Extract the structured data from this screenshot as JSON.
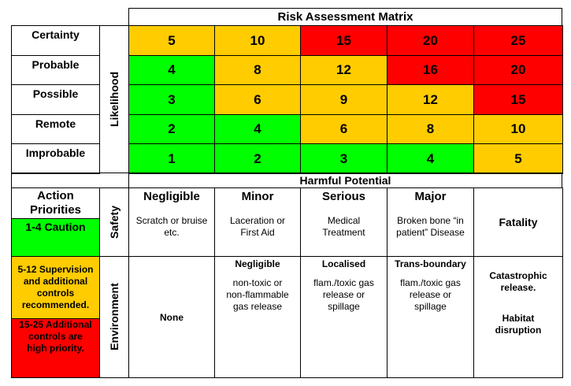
{
  "matrix_title": "Risk Assessment Matrix",
  "likelihood_label": "Likelihood",
  "likelihood_rows": [
    {
      "label": "Certainty",
      "values": [
        5,
        10,
        15,
        20,
        25
      ]
    },
    {
      "label": "Probable",
      "values": [
        4,
        8,
        12,
        16,
        20
      ]
    },
    {
      "label": "Possible",
      "values": [
        3,
        6,
        9,
        12,
        15
      ]
    },
    {
      "label": "Remote",
      "values": [
        2,
        4,
        6,
        8,
        10
      ]
    },
    {
      "label": "Improbable",
      "values": [
        1,
        2,
        3,
        4,
        5
      ]
    }
  ],
  "harmful_potential_label": "Harmful Potential",
  "colors": {
    "green": "#00ff00",
    "amber": "#ffcc00",
    "red": "#ff0000"
  },
  "action_priorities": {
    "title": "Action Priorities",
    "caution": "1-4 Caution",
    "supervision": "5-12 Supervision and additional controls recommended.",
    "high_priority": "15-25 Additional controls are high priority."
  },
  "safety_label": "Safety",
  "environment_label": "Environment",
  "safety": [
    {
      "header": "Negligible",
      "desc": "Scratch or bruise etc."
    },
    {
      "header": "Minor",
      "desc": "Laceration or First Aid"
    },
    {
      "header": "Serious",
      "desc": "Medical Treatment"
    },
    {
      "header": "Major",
      "desc": "Broken bone “in patient” Disease"
    },
    {
      "header": "",
      "desc": "Fatality"
    }
  ],
  "environment": [
    {
      "header": "",
      "desc": "None"
    },
    {
      "header": "Negligible",
      "desc": "non-toxic or non-flammable gas release"
    },
    {
      "header": "Localised",
      "desc": "flam./toxic gas release or spillage"
    },
    {
      "header": "Trans-boundary",
      "desc": "flam./toxic gas release or spillage"
    },
    {
      "header": "Catastrophic release.",
      "desc": "Habitat disruption"
    }
  ]
}
